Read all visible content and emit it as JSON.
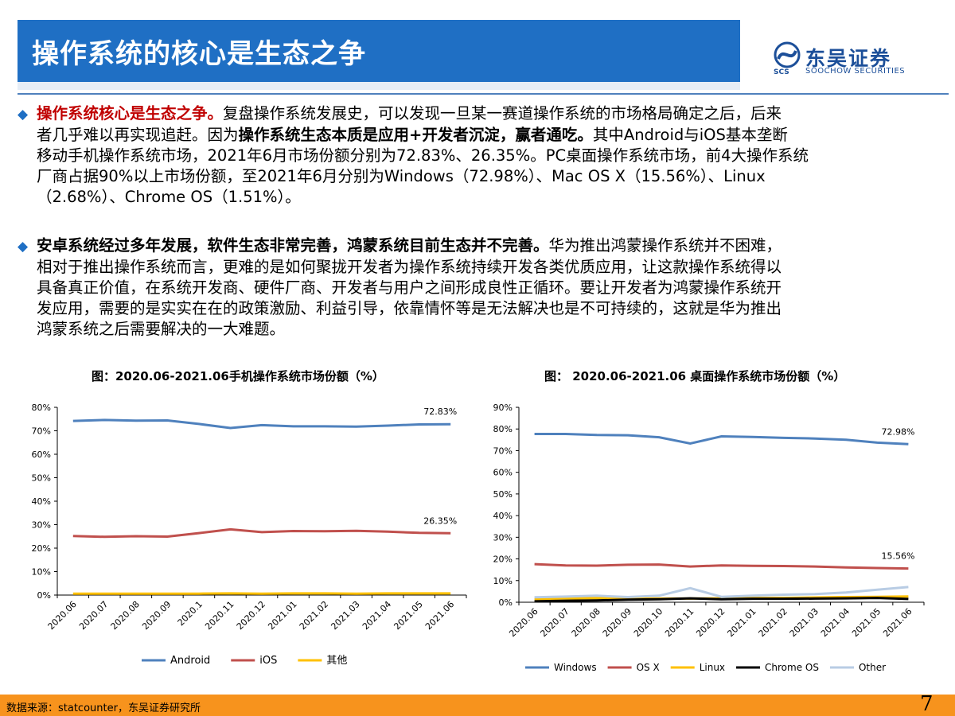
{
  "header": {
    "title": "操作系统的核心是生态之争"
  },
  "logo": {
    "cn": "东吴证券",
    "en": "SOOCHOW SECURITIES",
    "abbr": "SCS"
  },
  "paragraphs": [
    {
      "lines": [
        [
          {
            "t": "操作系统核心是生态之争。",
            "s": "red"
          },
          {
            "t": "复盘操作系统发展史，可以发现一旦某一赛道操作系统的市场格局确定之后，后来"
          }
        ],
        [
          {
            "t": "者几乎难以再实现追赶。因为"
          },
          {
            "t": "操作系统生态本质是应用+开发者沉淀，赢者通吃。",
            "s": "b"
          },
          {
            "t": "其中Android与iOS基本垄断"
          }
        ],
        [
          {
            "t": "移动手机操作系统市场，2021年6月市场份额分别为72.83%、26.35%。PC桌面操作系统市场，前4大操作系统"
          }
        ],
        [
          {
            "t": "厂商占据90%以上市场份额，至2021年6月分别为Windows（72.98%）、Mac OS X（15.56%）、Linux"
          }
        ],
        [
          {
            "t": "（2.68%）、Chrome OS（1.51%）。"
          }
        ]
      ]
    },
    {
      "lines": [
        [
          {
            "t": "安卓系统经过多年发展，软件生态非常完善，鸿蒙系统目前生态并不完善。",
            "s": "b"
          },
          {
            "t": "华为推出鸿蒙操作系统并不困难，"
          }
        ],
        [
          {
            "t": "相对于推出操作系统而言，更难的是如何聚拢开发者为操作系统持续开发各类优质应用，让这款操作系统得以"
          }
        ],
        [
          {
            "t": "具备真正价值，在系统开发商、硬件厂商、开发者与用户之间形成良性正循环。要让开发者为鸿蒙操作系统开"
          }
        ],
        [
          {
            "t": "发应用，需要的是实实在在的政策激励、利益引导，依靠情怀等是无法解决也是不可持续的，这就是华为推出"
          }
        ],
        [
          {
            "t": "鸿蒙系统之后需要解决的一大难题。"
          }
        ]
      ]
    }
  ],
  "chart_data": [
    {
      "type": "line",
      "title": "图：2020.06-2021.06手机操作系统市场份额（%）",
      "x": [
        "2020.06",
        "2020.07",
        "2020.08",
        "2020.09",
        "2020.1",
        "2020.11",
        "2020.12",
        "2021.01",
        "2021.02",
        "2021.03",
        "2021.04",
        "2021.05",
        "2021.06"
      ],
      "ylim": [
        0,
        80
      ],
      "yticks": [
        "0%",
        "10%",
        "20%",
        "30%",
        "40%",
        "50%",
        "60%",
        "70%",
        "80%"
      ],
      "grid": false,
      "legend": "bottom",
      "series": [
        {
          "name": "Android",
          "color": "#4f81bd",
          "values": [
            74.2,
            74.6,
            74.3,
            74.4,
            72.9,
            71.2,
            72.4,
            71.9,
            71.9,
            71.8,
            72.2,
            72.7,
            72.83
          ]
        },
        {
          "name": "iOS",
          "color": "#c0504d",
          "values": [
            25.2,
            24.8,
            25.1,
            24.9,
            26.4,
            28.0,
            26.8,
            27.3,
            27.2,
            27.4,
            27.0,
            26.5,
            26.35
          ]
        },
        {
          "name": "其他",
          "color": "#ffc000",
          "values": [
            0.6,
            0.6,
            0.6,
            0.6,
            0.6,
            0.7,
            0.6,
            0.7,
            0.7,
            0.6,
            0.7,
            0.7,
            0.7
          ]
        }
      ],
      "annotations": [
        {
          "series": "Android",
          "text": "72.83%"
        },
        {
          "series": "iOS",
          "text": "26.35%"
        }
      ]
    },
    {
      "type": "line",
      "title": "图： 2020.06-2021.06 桌面操作系统市场份额（%）",
      "x": [
        "2020.06",
        "2020.07",
        "2020.08",
        "2020.09",
        "2020.10",
        "2020.11",
        "2020.12",
        "2021.01",
        "2021.02",
        "2021.03",
        "2021.04",
        "2021.05",
        "2021.06"
      ],
      "ylim": [
        0,
        90
      ],
      "yticks": [
        "0%",
        "10%",
        "20%",
        "30%",
        "40%",
        "50%",
        "60%",
        "70%",
        "80%",
        "90%"
      ],
      "grid": false,
      "legend": "bottom",
      "series": [
        {
          "name": "Windows",
          "color": "#4f81bd",
          "values": [
            77.7,
            77.7,
            77.2,
            77.1,
            76.2,
            73.3,
            76.6,
            76.3,
            75.9,
            75.6,
            75.0,
            73.7,
            72.98
          ]
        },
        {
          "name": "OS X",
          "color": "#c0504d",
          "values": [
            17.6,
            17.0,
            16.9,
            17.3,
            17.4,
            16.5,
            17.0,
            16.8,
            16.7,
            16.5,
            16.1,
            15.8,
            15.56
          ]
        },
        {
          "name": "Linux",
          "color": "#ffc000",
          "values": [
            1.4,
            1.8,
            1.9,
            1.7,
            1.7,
            1.7,
            1.8,
            1.9,
            2.0,
            2.2,
            2.4,
            2.5,
            2.68
          ]
        },
        {
          "name": "Chrome OS",
          "color": "#000000",
          "values": [
            0.4,
            0.7,
            0.8,
            1.2,
            1.4,
            1.8,
            1.4,
            1.6,
            1.6,
            1.7,
            1.8,
            2.0,
            1.51
          ]
        },
        {
          "name": "Other",
          "color": "#b8cce4",
          "values": [
            2.3,
            2.6,
            3.0,
            2.4,
            3.0,
            6.5,
            2.5,
            3.0,
            3.5,
            3.8,
            4.5,
            5.8,
            7.0
          ]
        }
      ],
      "annotations": [
        {
          "series": "Windows",
          "text": "72.98%"
        },
        {
          "series": "OS X",
          "text": "15.56%"
        }
      ]
    }
  ],
  "footer": {
    "source": "数据来源：statcounter，东吴证券研究所",
    "page": "7"
  }
}
